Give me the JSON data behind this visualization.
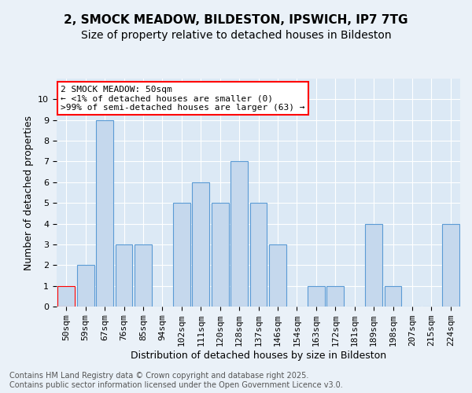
{
  "title": "2, SMOCK MEADOW, BILDESTON, IPSWICH, IP7 7TG",
  "subtitle": "Size of property relative to detached houses in Bildeston",
  "xlabel": "Distribution of detached houses by size in Bildeston",
  "ylabel": "Number of detached properties",
  "categories": [
    "50sqm",
    "59sqm",
    "67sqm",
    "76sqm",
    "85sqm",
    "94sqm",
    "102sqm",
    "111sqm",
    "120sqm",
    "128sqm",
    "137sqm",
    "146sqm",
    "154sqm",
    "163sqm",
    "172sqm",
    "181sqm",
    "189sqm",
    "198sqm",
    "207sqm",
    "215sqm",
    "224sqm"
  ],
  "values": [
    1,
    2,
    9,
    3,
    3,
    0,
    5,
    6,
    5,
    7,
    5,
    3,
    0,
    1,
    1,
    0,
    4,
    1,
    0,
    0,
    4
  ],
  "bar_color": "#c5d8ed",
  "bar_edge_color": "#5b9bd5",
  "highlight_bar_edge_color": "#ff0000",
  "annotation_text": "2 SMOCK MEADOW: 50sqm\n← <1% of detached houses are smaller (0)\n>99% of semi-detached houses are larger (63) →",
  "annotation_box_edge_color": "#ff0000",
  "ylim": [
    0,
    11
  ],
  "yticks": [
    0,
    1,
    2,
    3,
    4,
    5,
    6,
    7,
    8,
    9,
    10
  ],
  "background_color": "#eaf1f8",
  "plot_background_color": "#dce9f5",
  "grid_color": "#ffffff",
  "footer": "Contains HM Land Registry data © Crown copyright and database right 2025.\nContains public sector information licensed under the Open Government Licence v3.0.",
  "title_fontsize": 11,
  "subtitle_fontsize": 10,
  "xlabel_fontsize": 9,
  "ylabel_fontsize": 9,
  "tick_fontsize": 8,
  "annotation_fontsize": 8,
  "footer_fontsize": 7
}
